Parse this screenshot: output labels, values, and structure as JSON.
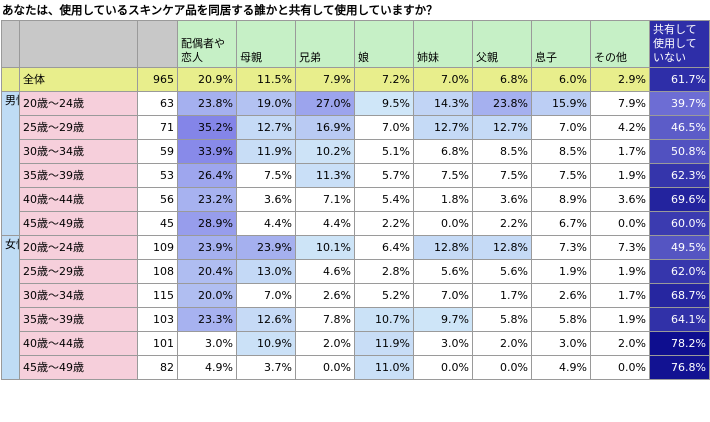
{
  "title": "あなたは、使用しているスキンケア品を同居する誰かと共有して使用していますか？",
  "chart_data": {
    "type": "table",
    "columns": [
      "配偶者や恋人",
      "母親",
      "兄弟",
      "娘",
      "姉妹",
      "父親",
      "息子",
      "その他",
      "共有して使用していない"
    ],
    "total": {
      "label": "全体",
      "n": 965,
      "values": [
        "20.9%",
        "11.5%",
        "7.9%",
        "7.2%",
        "7.0%",
        "6.8%",
        "6.0%",
        "2.9%",
        "61.7%"
      ]
    },
    "groups": [
      {
        "label": "男性",
        "rows": [
          {
            "label": "20歳～24歳",
            "n": 63,
            "values": [
              "23.8%",
              "19.0%",
              "27.0%",
              "9.5%",
              "14.3%",
              "23.8%",
              "15.9%",
              "7.9%",
              "39.7%"
            ]
          },
          {
            "label": "25歳～29歳",
            "n": 71,
            "values": [
              "35.2%",
              "12.7%",
              "16.9%",
              "7.0%",
              "12.7%",
              "12.7%",
              "7.0%",
              "4.2%",
              "46.5%"
            ]
          },
          {
            "label": "30歳～34歳",
            "n": 59,
            "values": [
              "33.9%",
              "11.9%",
              "10.2%",
              "5.1%",
              "6.8%",
              "8.5%",
              "8.5%",
              "1.7%",
              "50.8%"
            ]
          },
          {
            "label": "35歳～39歳",
            "n": 53,
            "values": [
              "26.4%",
              "7.5%",
              "11.3%",
              "5.7%",
              "7.5%",
              "7.5%",
              "7.5%",
              "1.9%",
              "62.3%"
            ]
          },
          {
            "label": "40歳～44歳",
            "n": 56,
            "values": [
              "23.2%",
              "3.6%",
              "7.1%",
              "5.4%",
              "1.8%",
              "3.6%",
              "8.9%",
              "3.6%",
              "69.6%"
            ]
          },
          {
            "label": "45歳～49歳",
            "n": 45,
            "values": [
              "28.9%",
              "4.4%",
              "4.4%",
              "2.2%",
              "0.0%",
              "2.2%",
              "6.7%",
              "0.0%",
              "60.0%"
            ]
          }
        ]
      },
      {
        "label": "女性",
        "rows": [
          {
            "label": "20歳～24歳",
            "n": 109,
            "values": [
              "23.9%",
              "23.9%",
              "10.1%",
              "6.4%",
              "12.8%",
              "12.8%",
              "7.3%",
              "7.3%",
              "49.5%"
            ]
          },
          {
            "label": "25歳～29歳",
            "n": 108,
            "values": [
              "20.4%",
              "13.0%",
              "4.6%",
              "2.8%",
              "5.6%",
              "5.6%",
              "1.9%",
              "1.9%",
              "62.0%"
            ]
          },
          {
            "label": "30歳～34歳",
            "n": 115,
            "values": [
              "20.0%",
              "7.0%",
              "2.6%",
              "5.2%",
              "7.0%",
              "1.7%",
              "2.6%",
              "1.7%",
              "68.7%"
            ]
          },
          {
            "label": "35歳～39歳",
            "n": 103,
            "values": [
              "23.3%",
              "12.6%",
              "7.8%",
              "10.7%",
              "9.7%",
              "5.8%",
              "5.8%",
              "1.9%",
              "64.1%"
            ]
          },
          {
            "label": "40歳～44歳",
            "n": 101,
            "values": [
              "3.0%",
              "10.9%",
              "2.0%",
              "11.9%",
              "3.0%",
              "2.0%",
              "3.0%",
              "2.0%",
              "78.2%"
            ]
          },
          {
            "label": "45歳～49歳",
            "n": 82,
            "values": [
              "4.9%",
              "3.7%",
              "0.0%",
              "11.0%",
              "0.0%",
              "0.0%",
              "4.9%",
              "0.0%",
              "76.8%"
            ]
          }
        ]
      }
    ]
  }
}
